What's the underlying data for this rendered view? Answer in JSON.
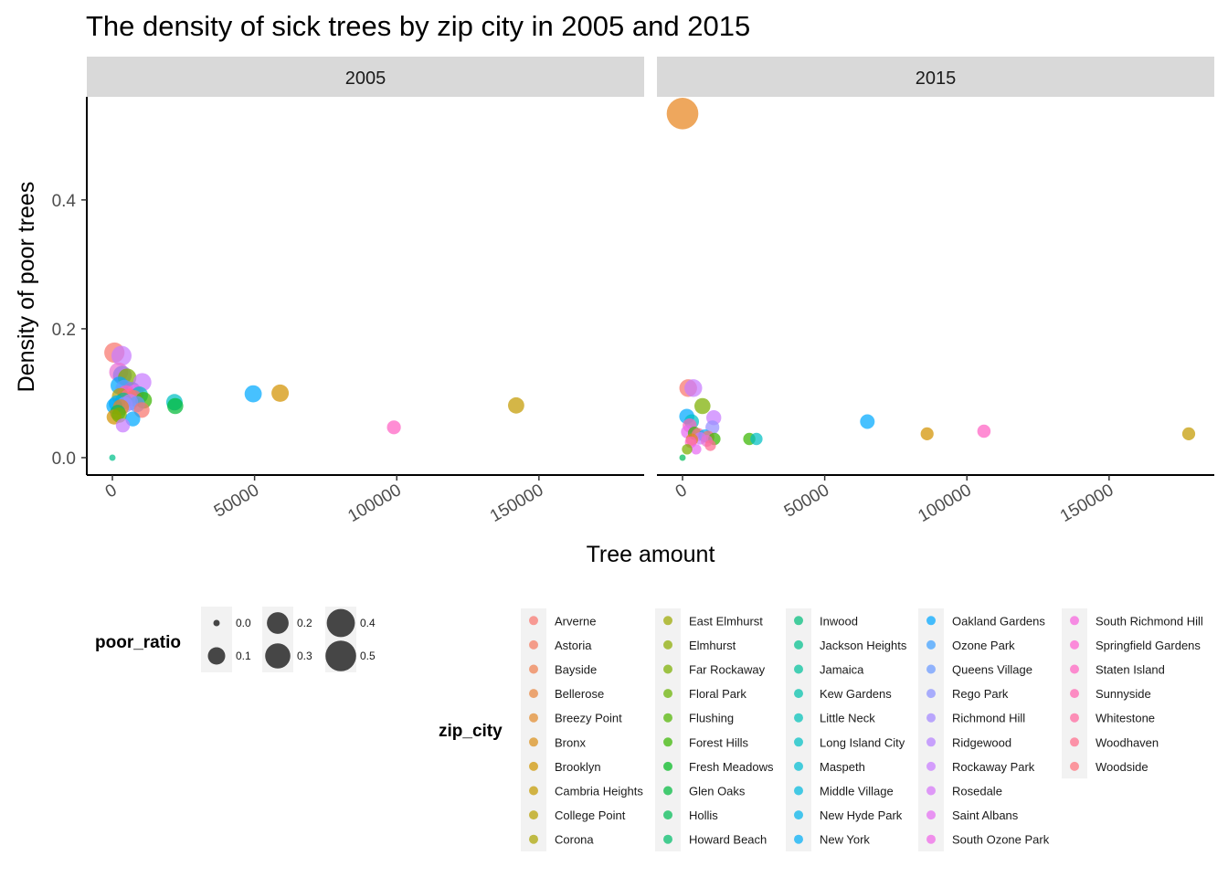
{
  "chart_data": {
    "type": "scatter",
    "title": "The density of sick trees by zip city in 2005 and 2015",
    "xlabel": "Tree amount",
    "ylabel": "Density of poor trees",
    "xlim": [
      -9000,
      187000
    ],
    "ylim": [
      -0.027,
      0.56
    ],
    "x_ticks": [
      0,
      50000,
      100000,
      150000
    ],
    "x_tick_labels": [
      "0",
      "50000",
      "100000",
      "150000"
    ],
    "y_ticks": [
      0.0,
      0.2,
      0.4
    ],
    "y_tick_labels": [
      "0.0",
      "0.2",
      "0.4"
    ],
    "grid": false,
    "legend_position": "bottom",
    "facets": [
      {
        "label": "2005",
        "points": [
          {
            "x": 700,
            "y": 0.163,
            "size": 0.163,
            "color": "#F8766D"
          },
          {
            "x": 3200,
            "y": 0.158,
            "size": 0.158,
            "color": "#C77CFF"
          },
          {
            "x": 2200,
            "y": 0.133,
            "size": 0.133,
            "color": "#EA71D1"
          },
          {
            "x": 3500,
            "y": 0.128,
            "size": 0.128,
            "color": "#9A78E8"
          },
          {
            "x": 5200,
            "y": 0.124,
            "size": 0.124,
            "color": "#7CAE00"
          },
          {
            "x": 10500,
            "y": 0.117,
            "size": 0.117,
            "color": "#C77CFF"
          },
          {
            "x": 2500,
            "y": 0.112,
            "size": 0.112,
            "color": "#00A9FF"
          },
          {
            "x": 4200,
            "y": 0.107,
            "size": 0.107,
            "color": "#619CFF"
          },
          {
            "x": 6800,
            "y": 0.104,
            "size": 0.104,
            "color": "#9A78E8"
          },
          {
            "x": 8000,
            "y": 0.1,
            "size": 0.1,
            "color": "#E76BF3"
          },
          {
            "x": 4800,
            "y": 0.099,
            "size": 0.099,
            "color": "#FF62BC"
          },
          {
            "x": 9500,
            "y": 0.097,
            "size": 0.097,
            "color": "#00BFC4"
          },
          {
            "x": 2800,
            "y": 0.095,
            "size": 0.095,
            "color": "#B79F00"
          },
          {
            "x": 5800,
            "y": 0.094,
            "size": 0.094,
            "color": "#FF6C91"
          },
          {
            "x": 7500,
            "y": 0.092,
            "size": 0.092,
            "color": "#F8766D"
          },
          {
            "x": 11000,
            "y": 0.089,
            "size": 0.089,
            "color": "#39B600"
          },
          {
            "x": 3900,
            "y": 0.088,
            "size": 0.088,
            "color": "#00C08B"
          },
          {
            "x": 6200,
            "y": 0.086,
            "size": 0.086,
            "color": "#C77CFF"
          },
          {
            "x": 1600,
            "y": 0.084,
            "size": 0.084,
            "color": "#00B0F6"
          },
          {
            "x": 8600,
            "y": 0.083,
            "size": 0.083,
            "color": "#619CFF"
          },
          {
            "x": 4400,
            "y": 0.082,
            "size": 0.082,
            "color": "#9590FF"
          },
          {
            "x": 700,
            "y": 0.08,
            "size": 0.08,
            "color": "#00A9FF"
          },
          {
            "x": 3000,
            "y": 0.078,
            "size": 0.078,
            "color": "#E7851E"
          },
          {
            "x": 10300,
            "y": 0.074,
            "size": 0.074,
            "color": "#F8766D"
          },
          {
            "x": 1900,
            "y": 0.07,
            "size": 0.07,
            "color": "#00BD5C"
          },
          {
            "x": 600,
            "y": 0.063,
            "size": 0.063,
            "color": "#D39200"
          },
          {
            "x": 2400,
            "y": 0.066,
            "size": 0.066,
            "color": "#7CAE00"
          },
          {
            "x": 7200,
            "y": 0.06,
            "size": 0.06,
            "color": "#00A9FF"
          },
          {
            "x": 3700,
            "y": 0.05,
            "size": 0.05,
            "color": "#C77CFF"
          },
          {
            "x": 21800,
            "y": 0.086,
            "size": 0.086,
            "color": "#00BFC4"
          },
          {
            "x": 22100,
            "y": 0.08,
            "size": 0.08,
            "color": "#00BA38"
          },
          {
            "x": 49500,
            "y": 0.099,
            "size": 0.099,
            "color": "#00A9FF"
          },
          {
            "x": 59000,
            "y": 0.1,
            "size": 0.1,
            "color": "#D39200"
          },
          {
            "x": 99000,
            "y": 0.047,
            "size": 0.047,
            "color": "#FF61C3"
          },
          {
            "x": 142000,
            "y": 0.081,
            "size": 0.081,
            "color": "#C49A00"
          },
          {
            "x": 0,
            "y": 0.0,
            "size": 0.0,
            "color": "#00C08B"
          }
        ]
      },
      {
        "label": "2015",
        "points": [
          {
            "x": 0,
            "y": 0.534,
            "size": 0.534,
            "color": "#E7851E"
          },
          {
            "x": 2000,
            "y": 0.108,
            "size": 0.108,
            "color": "#F8766D"
          },
          {
            "x": 3800,
            "y": 0.108,
            "size": 0.108,
            "color": "#C77CFF"
          },
          {
            "x": 7000,
            "y": 0.08,
            "size": 0.08,
            "color": "#7CAE00"
          },
          {
            "x": 11000,
            "y": 0.062,
            "size": 0.062,
            "color": "#C77CFF"
          },
          {
            "x": 1500,
            "y": 0.064,
            "size": 0.064,
            "color": "#00A9FF"
          },
          {
            "x": 3200,
            "y": 0.056,
            "size": 0.056,
            "color": "#00BFC4"
          },
          {
            "x": 10500,
            "y": 0.047,
            "size": 0.047,
            "color": "#9590FF"
          },
          {
            "x": 2500,
            "y": 0.05,
            "size": 0.05,
            "color": "#FF62BC"
          },
          {
            "x": 1800,
            "y": 0.04,
            "size": 0.04,
            "color": "#E76BF3"
          },
          {
            "x": 4200,
            "y": 0.038,
            "size": 0.038,
            "color": "#39B600"
          },
          {
            "x": 5500,
            "y": 0.036,
            "size": 0.036,
            "color": "#FF6C91"
          },
          {
            "x": 7800,
            "y": 0.034,
            "size": 0.034,
            "color": "#00B0F6"
          },
          {
            "x": 9000,
            "y": 0.032,
            "size": 0.032,
            "color": "#F8766D"
          },
          {
            "x": 6200,
            "y": 0.03,
            "size": 0.03,
            "color": "#C77CFF"
          },
          {
            "x": 11200,
            "y": 0.029,
            "size": 0.029,
            "color": "#39B600"
          },
          {
            "x": 3300,
            "y": 0.028,
            "size": 0.028,
            "color": "#E7851E"
          },
          {
            "x": 8500,
            "y": 0.026,
            "size": 0.026,
            "color": "#EA71D1"
          },
          {
            "x": 2900,
            "y": 0.024,
            "size": 0.024,
            "color": "#FF61C3"
          },
          {
            "x": 9800,
            "y": 0.019,
            "size": 0.019,
            "color": "#FF6C91"
          },
          {
            "x": 4800,
            "y": 0.013,
            "size": 0.013,
            "color": "#E76BF3"
          },
          {
            "x": 1600,
            "y": 0.013,
            "size": 0.013,
            "color": "#7CAE00"
          },
          {
            "x": 0,
            "y": 0.0,
            "size": 0.0,
            "color": "#00BD5C"
          },
          {
            "x": 23500,
            "y": 0.029,
            "size": 0.029,
            "color": "#39B600"
          },
          {
            "x": 26000,
            "y": 0.029,
            "size": 0.029,
            "color": "#00BFC4"
          },
          {
            "x": 65000,
            "y": 0.056,
            "size": 0.056,
            "color": "#00A9FF"
          },
          {
            "x": 86000,
            "y": 0.037,
            "size": 0.037,
            "color": "#D39200"
          },
          {
            "x": 106000,
            "y": 0.041,
            "size": 0.041,
            "color": "#FF61C3"
          },
          {
            "x": 178000,
            "y": 0.037,
            "size": 0.037,
            "color": "#C49A00"
          }
        ]
      }
    ],
    "legends": {
      "size": {
        "title": "poor_ratio",
        "breaks": [
          0.0,
          0.1,
          0.2,
          0.3,
          0.4,
          0.5
        ],
        "labels": [
          "0.0",
          "0.1",
          "0.2",
          "0.3",
          "0.4",
          "0.5"
        ]
      },
      "color": {
        "title": "zip_city",
        "entries": [
          {
            "label": "Arverne",
            "color": "#F8766D"
          },
          {
            "label": "Astoria",
            "color": "#F47A5F"
          },
          {
            "label": "Bayside",
            "color": "#EE7F4F"
          },
          {
            "label": "Bellerose",
            "color": "#E8853E"
          },
          {
            "label": "Breezy Point",
            "color": "#E28A2C"
          },
          {
            "label": "Bronx",
            "color": "#D98F19"
          },
          {
            "label": "Brooklyn",
            "color": "#CF9400"
          },
          {
            "label": "Cambria Heights",
            "color": "#C49A00"
          },
          {
            "label": "College Point",
            "color": "#B79F00"
          },
          {
            "label": "Corona",
            "color": "#AAA300"
          },
          {
            "label": "East Elmhurst",
            "color": "#9BA800"
          },
          {
            "label": "Elmhurst",
            "color": "#8BAB00"
          },
          {
            "label": "Far Rockaway",
            "color": "#7CAE00"
          },
          {
            "label": "Floral Park",
            "color": "#68B100"
          },
          {
            "label": "Flushing",
            "color": "#50B400"
          },
          {
            "label": "Forest Hills",
            "color": "#39B600"
          },
          {
            "label": "Fresh Meadows",
            "color": "#00B81F"
          },
          {
            "label": "Glen Oaks",
            "color": "#00BA3E"
          },
          {
            "label": "Hollis",
            "color": "#00BB55"
          },
          {
            "label": "Howard Beach",
            "color": "#00BC69"
          },
          {
            "label": "Inwood",
            "color": "#00BD7B"
          },
          {
            "label": "Jackson Heights",
            "color": "#00BF8C"
          },
          {
            "label": "Jamaica",
            "color": "#00C09B"
          },
          {
            "label": "Kew Gardens",
            "color": "#00C0AA"
          },
          {
            "label": "Little Neck",
            "color": "#00C0B8"
          },
          {
            "label": "Long Island City",
            "color": "#00BFC4"
          },
          {
            "label": "Maspeth",
            "color": "#00BCD2"
          },
          {
            "label": "Middle Village",
            "color": "#00B8DE"
          },
          {
            "label": "New Hyde Park",
            "color": "#00B3EA"
          },
          {
            "label": "New York",
            "color": "#00ADF5"
          },
          {
            "label": "Oakland Gardens",
            "color": "#00A6FF"
          },
          {
            "label": "Ozone Park",
            "color": "#3E9FFF"
          },
          {
            "label": "Queens Village",
            "color": "#6A98FF"
          },
          {
            "label": "Rego Park",
            "color": "#8A90FF"
          },
          {
            "label": "Richmond Hill",
            "color": "#A287FF"
          },
          {
            "label": "Ridgewood",
            "color": "#B67FFF"
          },
          {
            "label": "Rockaway Park",
            "color": "#C77CFF"
          },
          {
            "label": "Rosedale",
            "color": "#D675F8"
          },
          {
            "label": "Saint Albans",
            "color": "#E36EF1"
          },
          {
            "label": "South Ozone Park",
            "color": "#EE67E8"
          },
          {
            "label": "South Richmond Hill",
            "color": "#F762DD"
          },
          {
            "label": "Springfield Gardens",
            "color": "#FD61D0"
          },
          {
            "label": "Staten Island",
            "color": "#FF62C1"
          },
          {
            "label": "Sunnyside",
            "color": "#FF64B0"
          },
          {
            "label": "Whitestone",
            "color": "#FF679E"
          },
          {
            "label": "Woodhaven",
            "color": "#FF6C8B"
          },
          {
            "label": "Woodside",
            "color": "#FD717B"
          }
        ]
      }
    }
  }
}
